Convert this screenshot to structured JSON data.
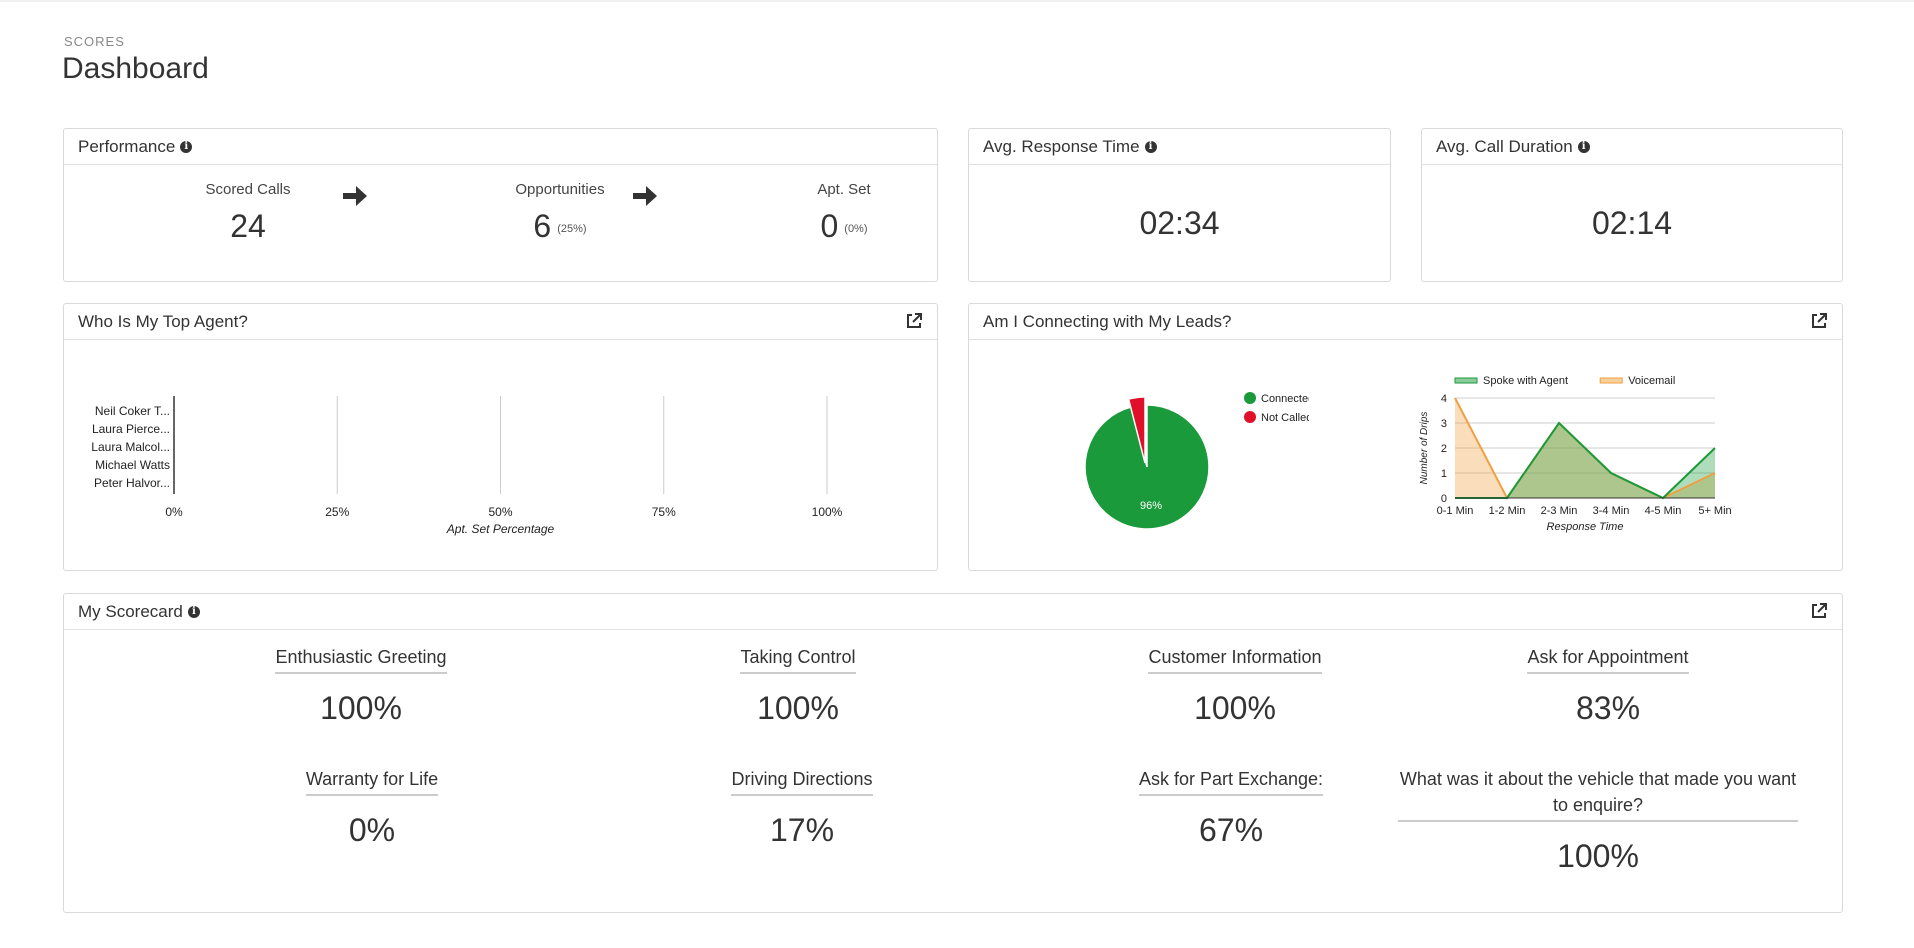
{
  "header": {
    "eyebrow": "SCORES",
    "title": "Dashboard"
  },
  "performance": {
    "title": "Performance",
    "scored_calls": {
      "label": "Scored Calls",
      "value": "24"
    },
    "opportunities": {
      "label": "Opportunities",
      "value": "6",
      "pct": "(25%)"
    },
    "apt_set": {
      "label": "Apt. Set",
      "value": "0",
      "pct": "(0%)"
    }
  },
  "response_time": {
    "title": "Avg. Response Time",
    "value": "02:34"
  },
  "call_duration": {
    "title": "Avg. Call Duration",
    "value": "02:14"
  },
  "top_agent": {
    "title": "Who Is My Top Agent?"
  },
  "leads": {
    "title": "Am I Connecting with My Leads?"
  },
  "scorecard": {
    "title": "My Scorecard",
    "items": [
      {
        "label": "Enthusiastic Greeting",
        "value": "100%"
      },
      {
        "label": "Taking Control",
        "value": "100%"
      },
      {
        "label": "Customer Information",
        "value": "100%"
      },
      {
        "label": "Ask for Appointment",
        "value": "83%"
      },
      {
        "label": "Warranty for Life",
        "value": "0%"
      },
      {
        "label": "Driving Directions",
        "value": "17%"
      },
      {
        "label": "Ask for Part Exchange:",
        "value": "67%"
      },
      {
        "label": "What was it about the vehicle that made you want to enquire?",
        "value": "100%"
      }
    ]
  },
  "colors": {
    "green": "#1a9a3a",
    "red": "#e0102a",
    "orange": "#f0a040",
    "grid": "#cccccc"
  },
  "chart_data": [
    {
      "type": "bar",
      "orientation": "horizontal",
      "categories": [
        "Neil Coker T...",
        "Laura Pierce...",
        "Laura Malcol...",
        "Michael Watts",
        "Peter Halvor..."
      ],
      "values": [
        0,
        0,
        0,
        0,
        0
      ],
      "xlabel": "Apt. Set Percentage",
      "ticks": [
        "0%",
        "25%",
        "50%",
        "75%",
        "100%"
      ],
      "xlim": [
        0,
        100
      ]
    },
    {
      "type": "pie",
      "labels": [
        "Connected",
        "Not Called"
      ],
      "values": [
        96,
        4
      ],
      "colors": [
        "#1a9a3a",
        "#e0102a"
      ],
      "slice_label": "96%",
      "legend": "right"
    },
    {
      "type": "area",
      "categories": [
        "0-1 Min",
        "1-2 Min",
        "2-3 Min",
        "3-4 Min",
        "4-5 Min",
        "5+ Min"
      ],
      "series": [
        {
          "name": "Spoke with Agent",
          "values": [
            0,
            0,
            3,
            1,
            0,
            2
          ],
          "color": "#1a9a3a"
        },
        {
          "name": "Voicemail",
          "values": [
            4,
            0,
            3,
            1,
            0,
            1
          ],
          "color": "#f0a040"
        }
      ],
      "xlabel": "Response Time",
      "ylabel": "Number of Drips",
      "ylim": [
        0,
        4
      ],
      "yticks": [
        "0",
        "1",
        "2",
        "3",
        "4"
      ],
      "legend": "top"
    }
  ]
}
